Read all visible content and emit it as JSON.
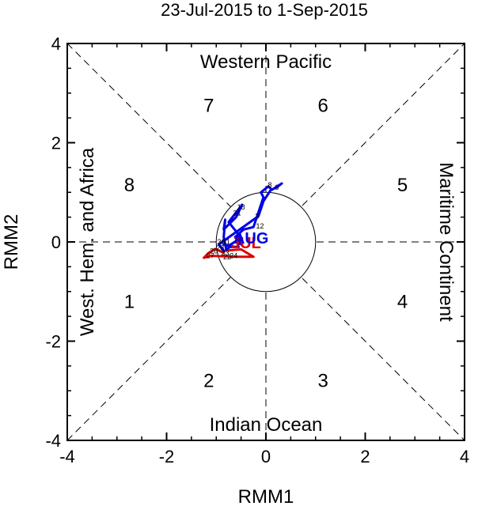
{
  "chart_data": {
    "type": "line",
    "title": "23-Jul-2015 to 1-Sep-2015",
    "xlabel": "RMM1",
    "ylabel": "RMM2",
    "xlim": [
      -4,
      4
    ],
    "ylim": [
      -4,
      4
    ],
    "xticks": [
      "-4",
      "-2",
      "0",
      "2",
      "4"
    ],
    "yticks": [
      "-4",
      "-2",
      "0",
      "2",
      "4"
    ],
    "xtick_values": [
      -4,
      -2,
      0,
      2,
      4
    ],
    "ytick_values": [
      -4,
      -2,
      0,
      2,
      4
    ],
    "unit_circle_radius": 1,
    "regions": {
      "top": "Western Pacific",
      "bottom": "Indian Ocean",
      "left": "West. Hem. and Africa",
      "right": "Maritime Continent"
    },
    "phases": [
      {
        "label": "1",
        "x": -2.75,
        "y": -1.2
      },
      {
        "label": "2",
        "x": -1.15,
        "y": -2.8
      },
      {
        "label": "3",
        "x": 1.15,
        "y": -2.8
      },
      {
        "label": "4",
        "x": 2.75,
        "y": -1.2
      },
      {
        "label": "5",
        "x": 2.75,
        "y": 1.15
      },
      {
        "label": "6",
        "x": 1.15,
        "y": 2.75
      },
      {
        "label": "7",
        "x": -1.15,
        "y": 2.75
      },
      {
        "label": "8",
        "x": -2.75,
        "y": 1.15
      }
    ],
    "series": [
      {
        "name": "Jul",
        "color": "#e00000",
        "points": [
          {
            "d": "23",
            "x": -0.85,
            "y": -0.22
          },
          {
            "x": -1.02,
            "y": -0.14
          },
          {
            "x": -1.15,
            "y": -0.22
          },
          {
            "x": -1.25,
            "y": -0.32
          },
          {
            "x": -1.1,
            "y": -0.28
          },
          {
            "d": "28",
            "x": -0.6,
            "y": -0.3
          },
          {
            "x": -0.25,
            "y": -0.3
          },
          {
            "x": -0.5,
            "y": -0.15
          },
          {
            "d": "31",
            "x": -0.85,
            "y": -0.18
          }
        ]
      },
      {
        "name": "Aug",
        "color": "#0000e6",
        "points": [
          {
            "d": "1",
            "x": -0.85,
            "y": -0.18
          },
          {
            "x": -0.95,
            "y": -0.05
          },
          {
            "d": "3",
            "x": -0.15,
            "y": 0.52
          },
          {
            "x": -0.05,
            "y": 0.82
          },
          {
            "x": 0.1,
            "y": 1.05
          },
          {
            "d": "6",
            "x": 0.22,
            "y": 1.1
          },
          {
            "x": 0.32,
            "y": 1.18
          },
          {
            "x": 0.12,
            "y": 1.05
          },
          {
            "d": "9",
            "x": 0.05,
            "y": 1.12
          },
          {
            "x": -0.1,
            "y": 1.0
          },
          {
            "x": -0.05,
            "y": 0.9
          },
          {
            "d": "12",
            "x": -0.25,
            "y": 0.3
          },
          {
            "x": -0.45,
            "y": 0.25
          },
          {
            "x": -0.62,
            "y": 0.1
          },
          {
            "x": -0.5,
            "y": -0.05
          },
          {
            "x": -0.55,
            "y": 0.15
          },
          {
            "x": -0.75,
            "y": 0.4
          },
          {
            "d": "18",
            "x": -0.48,
            "y": 0.75
          },
          {
            "x": -0.6,
            "y": 0.5
          },
          {
            "x": -0.85,
            "y": 0.25
          },
          {
            "d": "21",
            "x": -0.82,
            "y": 0.45
          },
          {
            "x": -0.85,
            "y": 0.1
          },
          {
            "x": -0.8,
            "y": -0.15
          },
          {
            "x": -0.72,
            "y": -0.1
          },
          {
            "x": -0.55,
            "y": -0.1
          },
          {
            "x": -0.7,
            "y": -0.1
          },
          {
            "x": -0.85,
            "y": -0.05
          },
          {
            "x": -0.75,
            "y": -0.08
          },
          {
            "x": -0.6,
            "y": 0.02
          },
          {
            "x": -0.55,
            "y": -0.05
          },
          {
            "d": "31",
            "x": -0.6,
            "y": 0.02
          }
        ]
      }
    ],
    "day_labels": [
      {
        "text": "23",
        "x": -0.82,
        "y": -0.22,
        "color": "#000000"
      },
      {
        "text": "24",
        "x": -0.65,
        "y": -0.28,
        "color": "#000000"
      },
      {
        "text": "22",
        "x": -0.78,
        "y": -0.3,
        "color": "#000000"
      },
      {
        "text": "27",
        "x": -1.12,
        "y": -0.28,
        "color": "#000000"
      },
      {
        "text": "26",
        "x": -1.05,
        "y": -0.18,
        "color": "#000000"
      },
      {
        "text": "28",
        "x": -0.92,
        "y": -0.12,
        "color": "#000000"
      },
      {
        "text": "30",
        "x": -0.9,
        "y": 0.0,
        "color": "#000000"
      },
      {
        "text": "31",
        "x": -0.8,
        "y": 0.0,
        "color": "#000000"
      },
      {
        "text": "3",
        "x": -0.18,
        "y": 0.52,
        "color": "#000000"
      },
      {
        "text": "6",
        "x": 0.22,
        "y": 1.1,
        "color": "#000000"
      },
      {
        "text": "8",
        "x": 0.08,
        "y": 1.15,
        "color": "#000000"
      },
      {
        "text": "12",
        "x": -0.12,
        "y": 0.32,
        "color": "#000000"
      },
      {
        "text": "18",
        "x": -0.5,
        "y": 0.7,
        "color": "#000000"
      },
      {
        "text": "21",
        "x": -0.58,
        "y": 0.58,
        "color": "#000000"
      }
    ],
    "month_labels": [
      {
        "text": "JUL",
        "x": -0.75,
        "y": -0.05,
        "color": "#e00000"
      },
      {
        "text": "AUG",
        "x": -0.65,
        "y": 0.05,
        "color": "#0000e6"
      }
    ]
  }
}
